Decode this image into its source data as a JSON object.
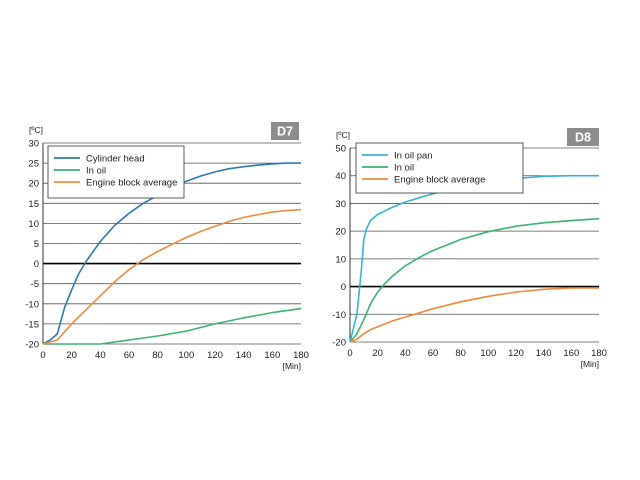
{
  "chart_data": [
    {
      "type": "line",
      "badge": "D7",
      "ylabel": "[ºC]",
      "xlabel": "[Min]",
      "xlim": [
        0,
        180
      ],
      "ylim": [
        -20,
        30
      ],
      "xticks": [
        0,
        20,
        40,
        60,
        80,
        100,
        120,
        140,
        160,
        180
      ],
      "yticks": [
        -20,
        -15,
        -10,
        -5,
        0,
        5,
        10,
        15,
        20,
        25,
        30
      ],
      "grid": true,
      "legend_position": "top-left",
      "series": [
        {
          "name": "Cylinder head",
          "color": "#2e78b7",
          "x": [
            0,
            5,
            10,
            15,
            20,
            25,
            30,
            40,
            50,
            60,
            70,
            80,
            90,
            100,
            110,
            120,
            130,
            140,
            150,
            160,
            170,
            180
          ],
          "y": [
            -20,
            -19,
            -17.5,
            -11,
            -6.5,
            -2.5,
            0.5,
            5.5,
            9.5,
            12.5,
            15,
            17,
            19,
            20.5,
            21.8,
            22.8,
            23.6,
            24.1,
            24.5,
            24.8,
            25,
            25
          ]
        },
        {
          "name": "In oil",
          "color": "#3cb371",
          "x": [
            0,
            40,
            60,
            80,
            100,
            120,
            140,
            160,
            180
          ],
          "y": [
            -20,
            -20,
            -19,
            -18,
            -16.8,
            -15,
            -13.5,
            -12.2,
            -11.2
          ]
        },
        {
          "name": "Engine block average",
          "color": "#f08a3c",
          "x": [
            0,
            5,
            10,
            15,
            20,
            30,
            40,
            50,
            60,
            70,
            80,
            90,
            100,
            110,
            120,
            130,
            140,
            150,
            160,
            170,
            180
          ],
          "y": [
            -20,
            -19.5,
            -19,
            -17,
            -15,
            -11.5,
            -8,
            -4.5,
            -1.5,
            1,
            3,
            4.8,
            6.5,
            8,
            9.3,
            10.5,
            11.5,
            12.2,
            12.8,
            13.2,
            13.4
          ]
        }
      ]
    },
    {
      "type": "line",
      "badge": "D8",
      "ylabel": "[ºC]",
      "xlabel": "[Min]",
      "xlim": [
        0,
        180
      ],
      "ylim": [
        -20,
        50
      ],
      "xticks": [
        0,
        20,
        40,
        60,
        80,
        100,
        120,
        140,
        160,
        180
      ],
      "yticks": [
        -20,
        -10,
        0,
        10,
        20,
        30,
        40,
        50
      ],
      "grid": true,
      "legend_position": "top-left",
      "series": [
        {
          "name": "In oil pan",
          "color": "#3ab0d8",
          "x": [
            0,
            5,
            8,
            10,
            12,
            15,
            20,
            30,
            40,
            60,
            80,
            100,
            120,
            140,
            160,
            180
          ],
          "y": [
            -20,
            -10,
            5,
            17,
            21,
            24,
            26,
            28.5,
            30.5,
            33.5,
            36,
            38,
            39,
            39.8,
            40,
            40
          ]
        },
        {
          "name": "In oil",
          "color": "#3cb371",
          "x": [
            0,
            5,
            10,
            15,
            20,
            25,
            30,
            40,
            50,
            60,
            80,
            100,
            120,
            140,
            160,
            180
          ],
          "y": [
            -20,
            -17,
            -12,
            -6,
            -2,
            1,
            3.5,
            7.5,
            10.5,
            13,
            17,
            19.8,
            21.8,
            23,
            23.8,
            24.5
          ]
        },
        {
          "name": "Engine block average",
          "color": "#f08a3c",
          "x": [
            0,
            5,
            10,
            15,
            20,
            30,
            40,
            60,
            80,
            100,
            120,
            140,
            160,
            180
          ],
          "y": [
            -20,
            -19,
            -17,
            -15.5,
            -14.5,
            -12.5,
            -11,
            -8,
            -5.5,
            -3.5,
            -2,
            -1,
            -0.5,
            -0.5
          ]
        }
      ]
    }
  ]
}
